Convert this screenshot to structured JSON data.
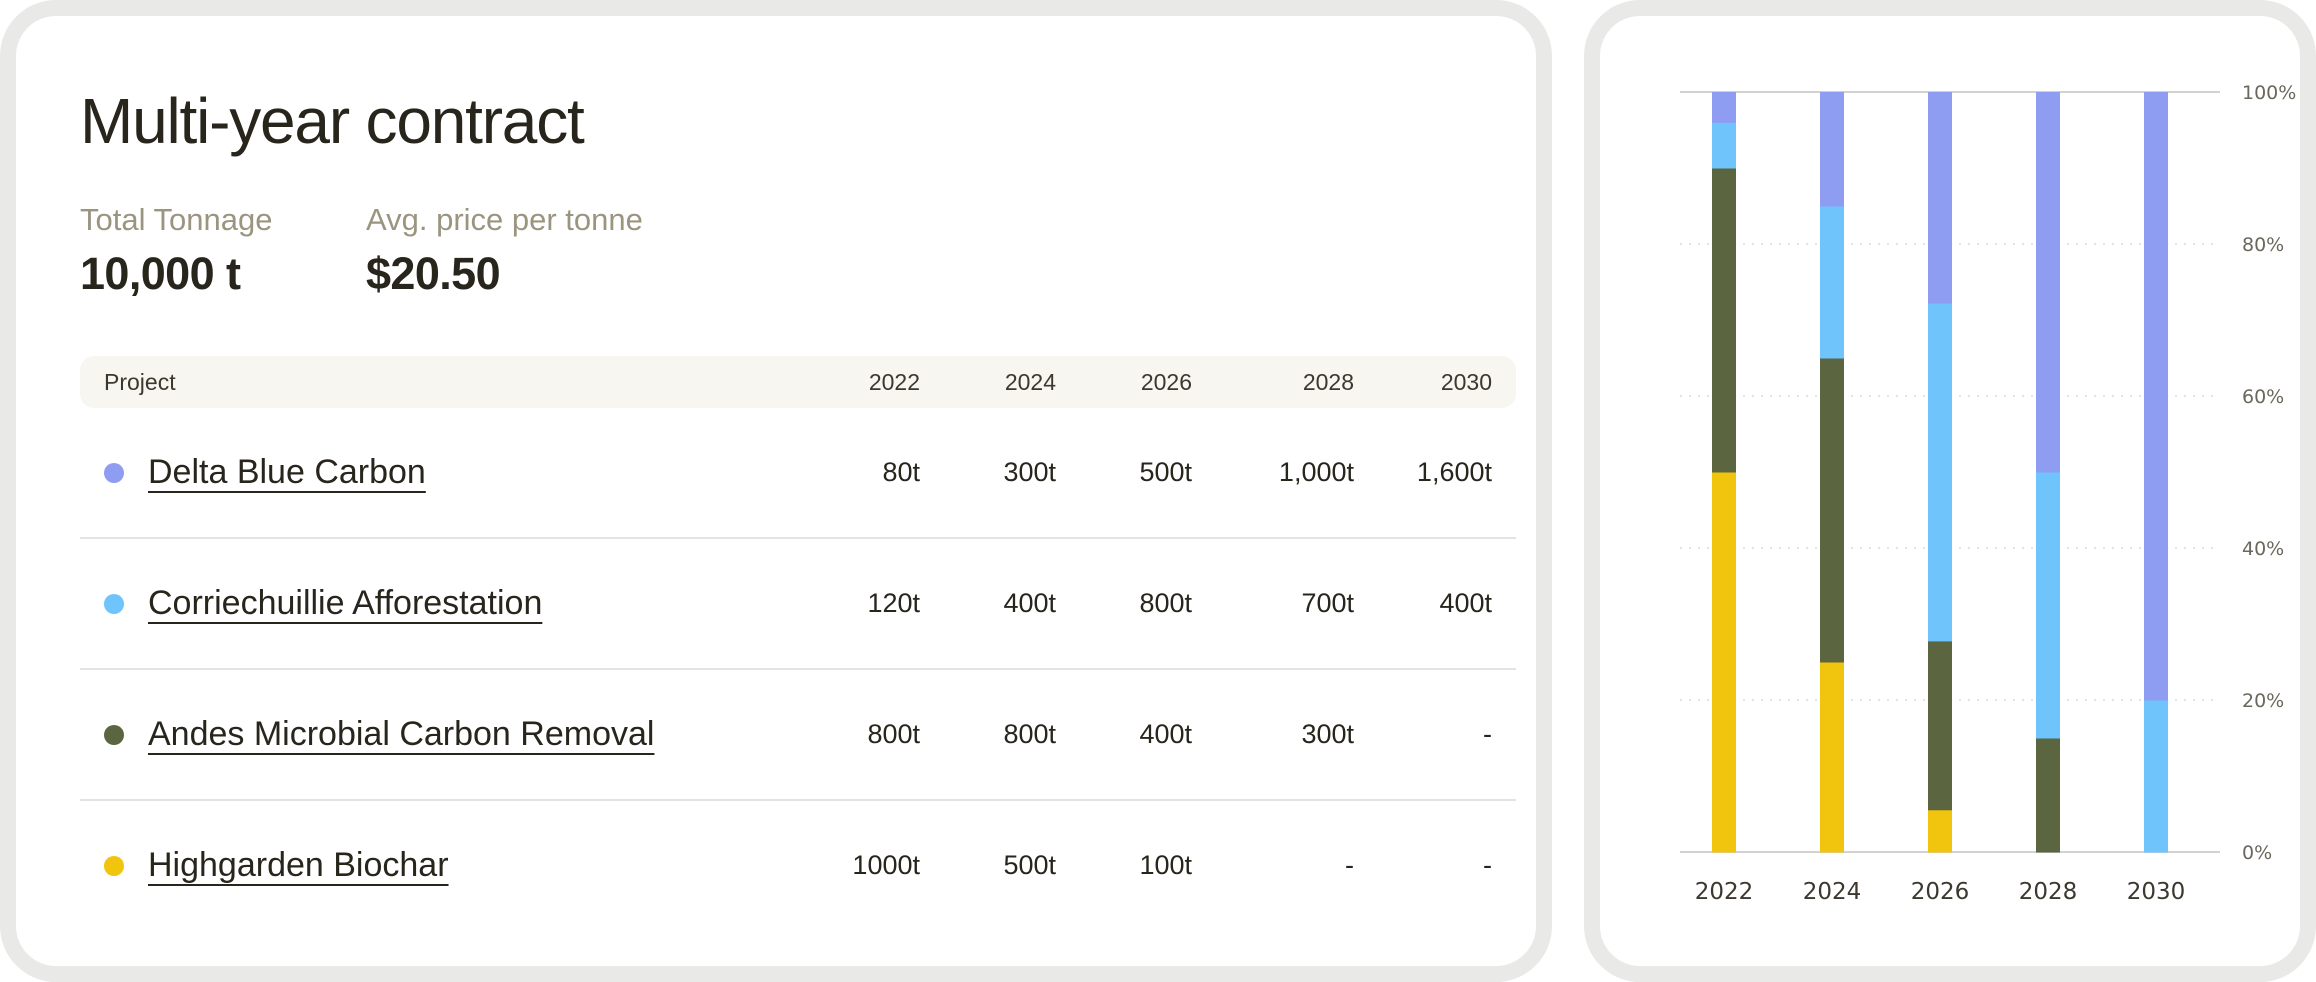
{
  "table_card": {
    "title": "Multi-year contract",
    "stats": [
      {
        "label": "Total Tonnage",
        "value": "10,000 t"
      },
      {
        "label": "Avg. price per tonne",
        "value": "$20.50"
      }
    ],
    "columns": [
      "Project",
      "2022",
      "2024",
      "2026",
      "2028",
      "2030"
    ],
    "rows": [
      {
        "name": "Delta Blue Carbon",
        "color": "#8e9cf2",
        "cells": [
          "80t",
          "300t",
          "500t",
          "1,000t",
          "1,600t"
        ]
      },
      {
        "name": "Corriechuillie Afforestation",
        "color": "#6ec4fb",
        "cells": [
          "120t",
          "400t",
          "800t",
          "700t",
          "400t"
        ]
      },
      {
        "name": "Andes Microbial Carbon Removal",
        "color": "#5b6640",
        "cells": [
          "800t",
          "800t",
          "400t",
          "300t",
          "-"
        ]
      },
      {
        "name": "Highgarden Biochar",
        "color": "#f1c40d",
        "cells": [
          "1000t",
          "500t",
          "100t",
          "-",
          "-"
        ]
      }
    ]
  },
  "chart_data": {
    "type": "bar",
    "stacked": true,
    "normalized": true,
    "categories": [
      "2022",
      "2024",
      "2026",
      "2028",
      "2030"
    ],
    "series": [
      {
        "color": "#f1c40d",
        "values": [
          1000,
          500,
          100,
          0,
          0
        ]
      },
      {
        "color": "#5b6640",
        "values": [
          800,
          800,
          400,
          300,
          0
        ]
      },
      {
        "color": "#6ec4fb",
        "values": [
          120,
          400,
          800,
          700,
          400
        ]
      },
      {
        "color": "#8e9cf2",
        "values": [
          80,
          300,
          500,
          1000,
          1600
        ]
      }
    ],
    "yticks": [
      "0%",
      "20%",
      "40%",
      "60%",
      "80%",
      "100%"
    ],
    "ylim": [
      0,
      100
    ],
    "grid": true,
    "axis_position": "right"
  }
}
